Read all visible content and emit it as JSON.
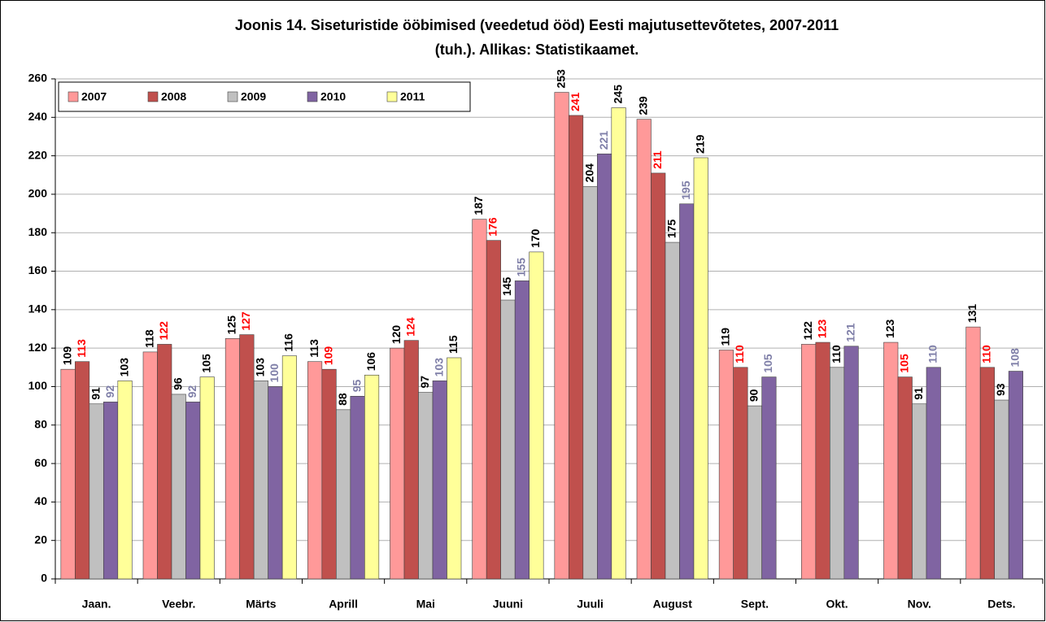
{
  "chart_data": {
    "type": "bar",
    "title": [
      "Joonis 14. Siseturistide ööbimised (veedetud ööd) Eesti majutusettevõtetes, 2007-2011",
      "(tuh.).   Allikas: Statistikaamet."
    ],
    "categories": [
      "Jaan.",
      "Veebr.",
      "Märts",
      "Aprill",
      "Mai",
      "Juuni",
      "Juuli",
      "August",
      "Sept.",
      "Okt.",
      "Nov.",
      "Dets."
    ],
    "series": [
      {
        "name": "2007",
        "color": "#ff9999",
        "label_color": "#000000",
        "values": [
          109,
          118,
          125,
          113,
          120,
          187,
          253,
          239,
          119,
          122,
          123,
          131
        ]
      },
      {
        "name": "2008",
        "color": "#c0504d",
        "label_color": "#ff0000",
        "values": [
          113,
          122,
          127,
          109,
          124,
          176,
          241,
          211,
          110,
          123,
          105,
          110
        ]
      },
      {
        "name": "2009",
        "color": "#c0c0c0",
        "label_color": "#000000",
        "values": [
          91,
          96,
          103,
          88,
          97,
          145,
          204,
          175,
          90,
          110,
          91,
          93
        ]
      },
      {
        "name": "2010",
        "color": "#8064a2",
        "label_color": "#7f7fa8",
        "values": [
          92,
          92,
          100,
          95,
          103,
          155,
          221,
          195,
          105,
          121,
          110,
          108
        ]
      },
      {
        "name": "2011",
        "color": "#ffff99",
        "label_color": "#000000",
        "values": [
          103,
          105,
          116,
          106,
          115,
          170,
          245,
          219,
          null,
          null,
          null,
          null
        ]
      }
    ],
    "ylim": [
      0,
      260
    ],
    "yticks": [
      0,
      20,
      40,
      60,
      80,
      100,
      120,
      140,
      160,
      180,
      200,
      220,
      240,
      260
    ],
    "grid": true,
    "legend": "top-left"
  }
}
